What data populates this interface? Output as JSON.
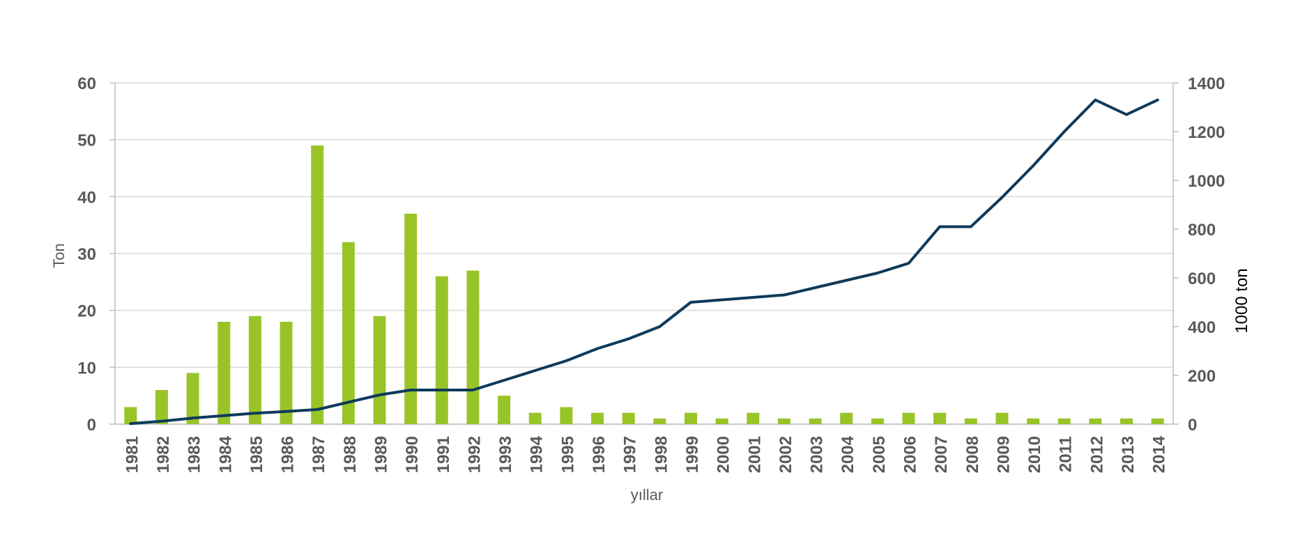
{
  "chart_data": {
    "type": "bar",
    "title": "",
    "xlabel": "yıllar",
    "ylabel": "Ton",
    "y2label": "1000 ton",
    "ylim": [
      0,
      60
    ],
    "y2lim": [
      0,
      1400
    ],
    "yticks": [
      "0",
      "10",
      "20",
      "30",
      "40",
      "50",
      "60"
    ],
    "y2ticks": [
      "0",
      "200",
      "400",
      "600",
      "800",
      "1000",
      "1200",
      "1400"
    ],
    "grid": true,
    "legend": "none",
    "categories": [
      "1981",
      "1982",
      "1983",
      "1984",
      "1985",
      "1986",
      "1987",
      "1988",
      "1989",
      "1990",
      "1991",
      "1992",
      "1993",
      "1994",
      "1995",
      "1996",
      "1997",
      "1998",
      "1999",
      "2000",
      "2001",
      "2002",
      "2003",
      "2004",
      "2005",
      "2006",
      "2007",
      "2008",
      "2009",
      "2010",
      "2011",
      "2012",
      "2013",
      "2014"
    ],
    "series": [
      {
        "type": "bar",
        "axis": "left",
        "color": "#99c428",
        "values": [
          3,
          6,
          9,
          18,
          19,
          18,
          49,
          32,
          19,
          37,
          26,
          27,
          5,
          2,
          3,
          2,
          2,
          1,
          2,
          1,
          2,
          1,
          1,
          2,
          1,
          2,
          2,
          1,
          2,
          1,
          1,
          1,
          1,
          1
        ]
      },
      {
        "type": "line",
        "axis": "right",
        "color": "#0d3a5c",
        "values": [
          2,
          12,
          25,
          35,
          45,
          52,
          60,
          90,
          120,
          140,
          140,
          140,
          180,
          220,
          260,
          310,
          350,
          400,
          500,
          510,
          520,
          530,
          560,
          590,
          620,
          660,
          810,
          810,
          930,
          1060,
          1200,
          1330,
          1270,
          1330
        ]
      }
    ]
  }
}
